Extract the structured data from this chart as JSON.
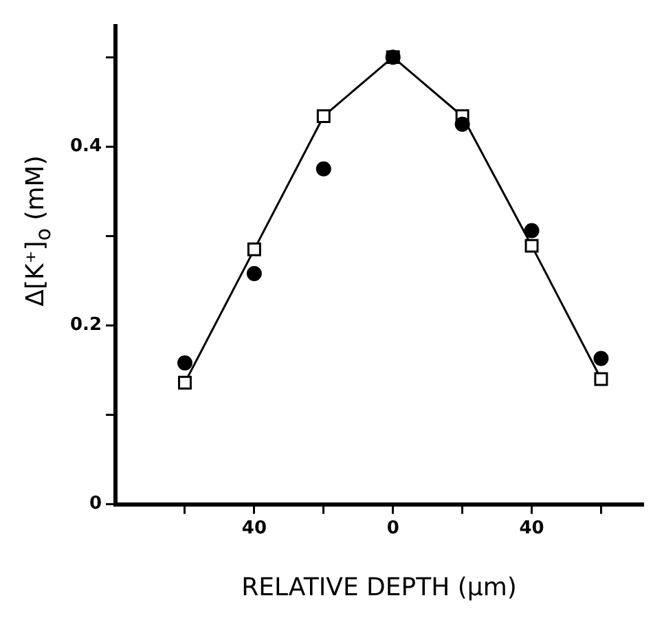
{
  "chart_data": {
    "type": "line",
    "xlabel": "RELATIVE DEPTH (µm)",
    "ylabel": "Δ[K⁺]$_{o}$ (mM)",
    "x": [
      -60,
      -40,
      -20,
      0,
      20,
      40,
      60
    ],
    "xlim": [
      -80,
      72
    ],
    "xticks": [
      {
        "value": -60,
        "label": null
      },
      {
        "value": -40,
        "label": "40"
      },
      {
        "value": -20,
        "label": null
      },
      0,
      {
        "value": 20,
        "label": null
      },
      {
        "value": 40,
        "label": "40"
      },
      {
        "value": 60,
        "label": null
      }
    ],
    "ylim": [
      0,
      0.535
    ],
    "yticks": [
      0,
      {
        "value": 0.1,
        "label": null
      },
      0.2,
      {
        "value": 0.3,
        "label": null
      },
      0.4,
      {
        "value": 0.5,
        "label": null
      }
    ],
    "series": [
      {
        "color": "#000000",
        "marker": "square",
        "values": [
          0.136,
          0.285,
          0.434,
          0.5,
          0.434,
          0.289,
          0.14
        ]
      },
      {
        "type": "scatter",
        "color": "#000000",
        "marker": "circle",
        "values": [
          0.158,
          0.258,
          0.375,
          0.5,
          0.425,
          0.306,
          0.163
        ]
      }
    ],
    "grid": false,
    "legend": false
  }
}
